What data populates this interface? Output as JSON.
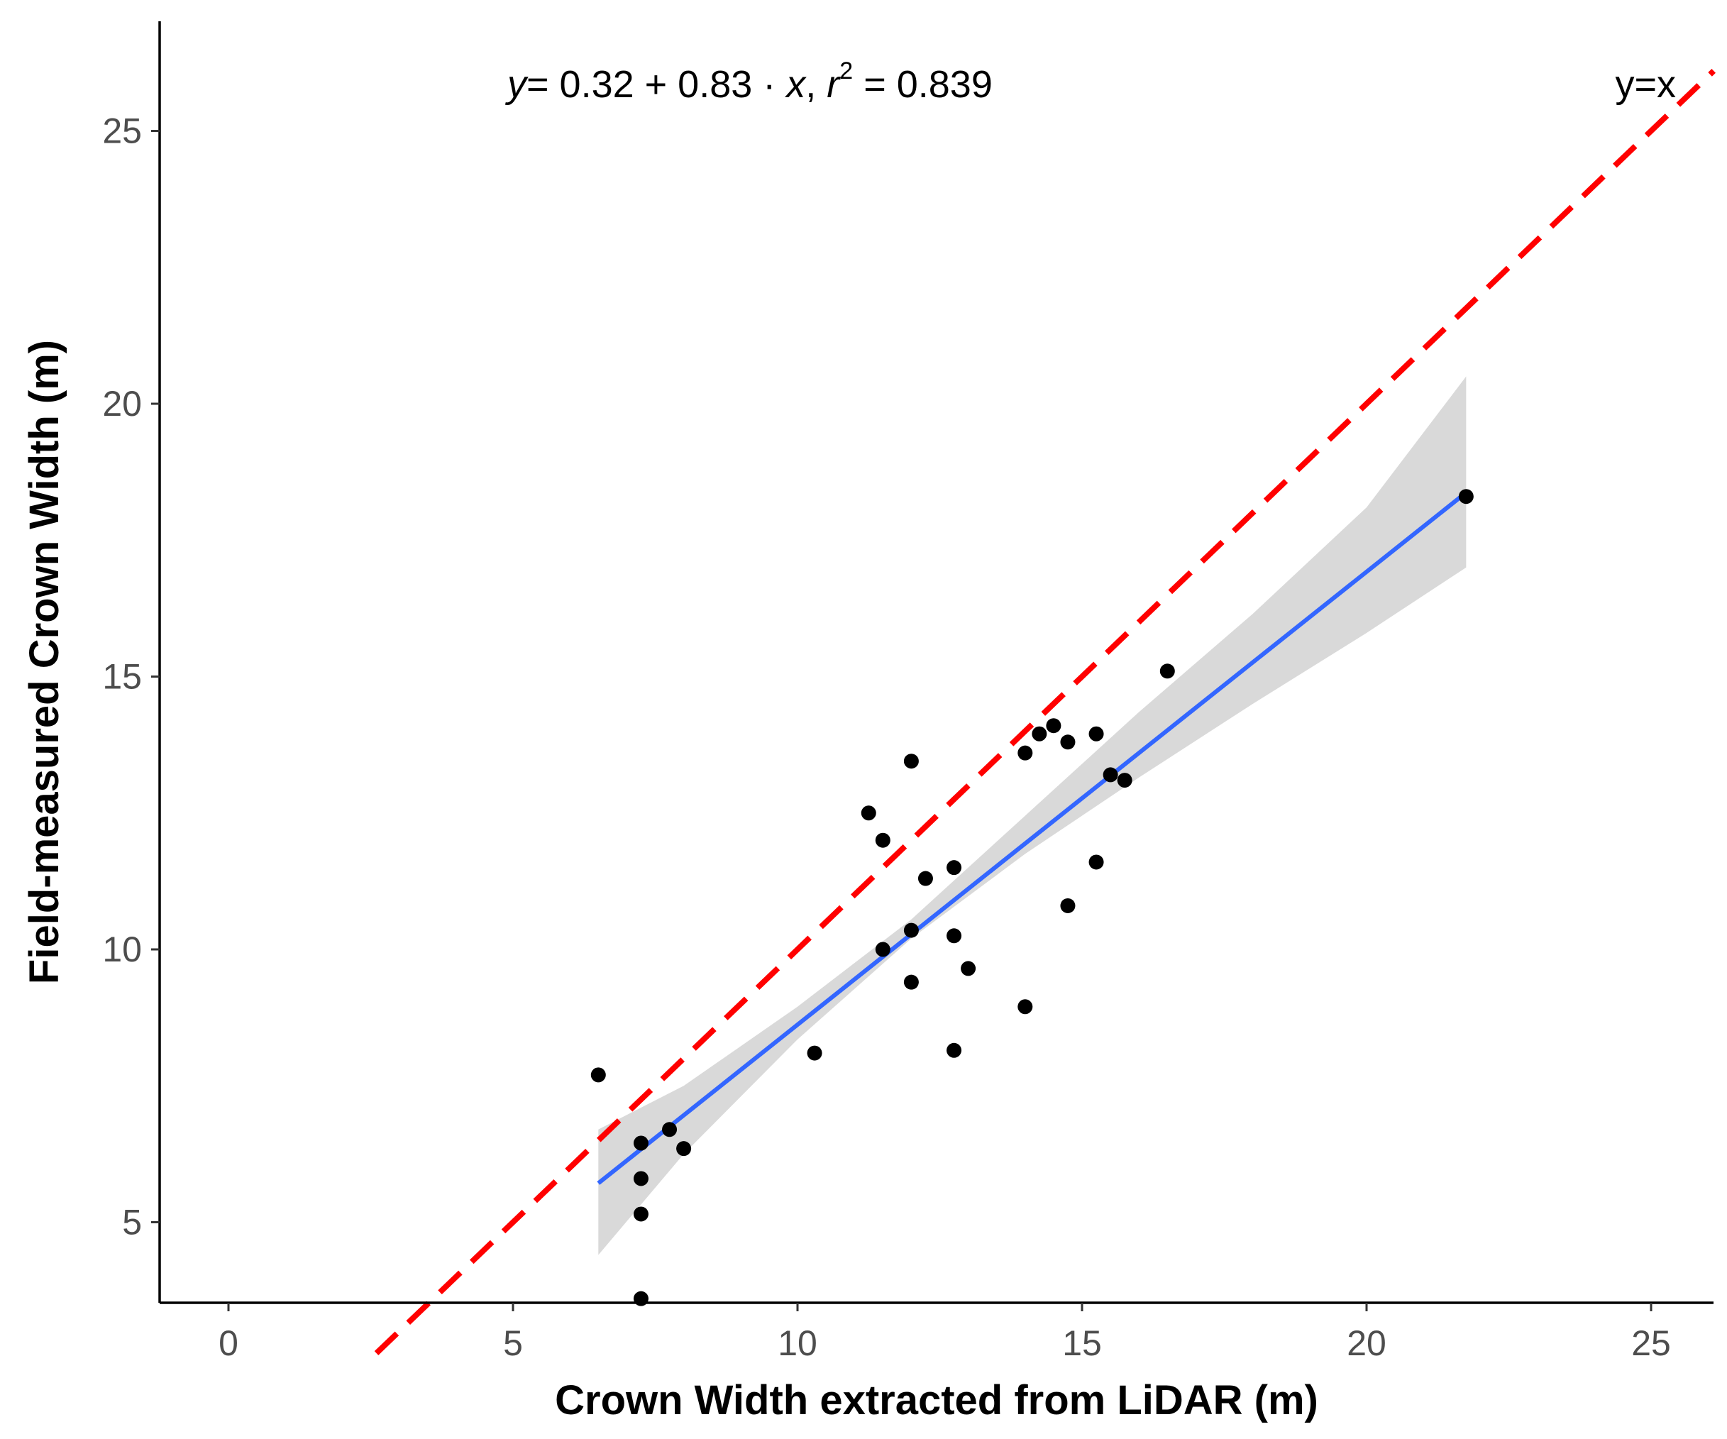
{
  "chart_data": {
    "type": "scatter",
    "xlabel": "Crown Width extracted from LiDAR (m)",
    "ylabel": "Field-measured Crown Width (m)",
    "xlim": [
      -1.2,
      26.2
    ],
    "ylim": [
      2.6,
      26.1
    ],
    "x_ticks": [
      0,
      5,
      10,
      15,
      20,
      25
    ],
    "y_ticks": [
      5,
      10,
      15,
      20,
      25
    ],
    "x_tick_labels": [
      "0",
      "5",
      "10",
      "15",
      "20",
      "25"
    ],
    "y_tick_labels": [
      "5",
      "10",
      "15",
      "20",
      "25"
    ],
    "grid": false,
    "points": [
      {
        "x": 6.5,
        "y": 7.7
      },
      {
        "x": 7.25,
        "y": 6.45
      },
      {
        "x": 7.25,
        "y": 5.8
      },
      {
        "x": 7.25,
        "y": 5.15
      },
      {
        "x": 7.25,
        "y": 3.6
      },
      {
        "x": 7.75,
        "y": 6.7
      },
      {
        "x": 8.0,
        "y": 6.35
      },
      {
        "x": 10.3,
        "y": 8.1
      },
      {
        "x": 11.25,
        "y": 12.5
      },
      {
        "x": 11.5,
        "y": 12.0
      },
      {
        "x": 11.5,
        "y": 10.0
      },
      {
        "x": 12.0,
        "y": 13.45
      },
      {
        "x": 12.0,
        "y": 10.35
      },
      {
        "x": 12.0,
        "y": 9.4
      },
      {
        "x": 12.25,
        "y": 11.3
      },
      {
        "x": 12.75,
        "y": 11.5
      },
      {
        "x": 12.75,
        "y": 10.25
      },
      {
        "x": 12.75,
        "y": 8.15
      },
      {
        "x": 13.0,
        "y": 9.65
      },
      {
        "x": 14.0,
        "y": 13.6
      },
      {
        "x": 14.0,
        "y": 8.95
      },
      {
        "x": 14.25,
        "y": 13.95
      },
      {
        "x": 14.5,
        "y": 14.1
      },
      {
        "x": 14.75,
        "y": 13.8
      },
      {
        "x": 14.75,
        "y": 10.8
      },
      {
        "x": 15.25,
        "y": 13.95
      },
      {
        "x": 15.25,
        "y": 11.6
      },
      {
        "x": 15.5,
        "y": 13.2
      },
      {
        "x": 15.75,
        "y": 13.1
      },
      {
        "x": 16.5,
        "y": 15.1
      },
      {
        "x": 21.75,
        "y": 18.3
      }
    ],
    "fit_line": {
      "intercept": 0.32,
      "slope": 0.83,
      "x_range": [
        6.5,
        21.75
      ],
      "color": "#3366FF"
    },
    "confidence_band": {
      "x": [
        6.5,
        8,
        10,
        12,
        14,
        16,
        18,
        20,
        21.75
      ],
      "lower": [
        4.4,
        6.25,
        8.35,
        10.2,
        11.75,
        13.15,
        14.5,
        15.8,
        17.0
      ],
      "upper": [
        6.7,
        7.5,
        8.95,
        10.55,
        12.45,
        14.35,
        16.15,
        18.1,
        20.5
      ],
      "color": "#D9D9D9"
    },
    "reference_line": {
      "label": "y=x",
      "slope": 1,
      "intercept": 0,
      "color": "#FF0000",
      "style": "dashed"
    },
    "equation": {
      "y": "y",
      "rhs": "= 0.32 + 0.83 · ",
      "x": "x",
      "comma": ",  ",
      "r": "r",
      "r_sup": "2",
      "r_value": " = 0.839"
    },
    "point_color": "#000000"
  }
}
